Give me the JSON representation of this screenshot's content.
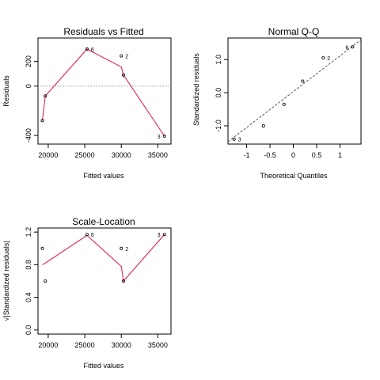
{
  "chart_data": [
    {
      "type": "scatter",
      "title": "Residuals vs Fitted",
      "xlabel": "Fitted values",
      "ylabel": "Residuals",
      "xlim": [
        18600,
        36800
      ],
      "ylim": [
        -470,
        390
      ],
      "xticks": [
        20000,
        25000,
        30000,
        35000
      ],
      "yticks": [
        -400,
        0,
        200
      ],
      "points": [
        {
          "x": 19200,
          "y": -280,
          "label": ""
        },
        {
          "x": 19600,
          "y": -80,
          "label": ""
        },
        {
          "x": 25300,
          "y": 300,
          "label": "6"
        },
        {
          "x": 30000,
          "y": 245,
          "label": "2"
        },
        {
          "x": 30300,
          "y": 90,
          "label": ""
        },
        {
          "x": 35900,
          "y": -405,
          "label": "3"
        }
      ],
      "smooth": [
        [
          19200,
          -280
        ],
        [
          19600,
          -80
        ],
        [
          25300,
          300
        ],
        [
          30000,
          155
        ],
        [
          30300,
          90
        ],
        [
          35900,
          -405
        ]
      ],
      "refline": {
        "type": "h",
        "value": 0
      }
    },
    {
      "type": "scatter",
      "title": "Normal Q-Q",
      "xlabel": "Theoretical Quantiles",
      "ylabel": "Standardized residuals",
      "xlim": [
        -1.4,
        1.45
      ],
      "ylim": [
        -1.55,
        1.65
      ],
      "xticks": [
        -1.0,
        -0.5,
        0.0,
        0.5,
        1.0
      ],
      "ytick_labels": [
        "-1.0",
        "0.0",
        "1.0"
      ],
      "yticks": [
        -1.0,
        0.0,
        1.0
      ],
      "points": [
        {
          "x": -1.27,
          "y": -1.4,
          "label": "3"
        },
        {
          "x": -0.64,
          "y": -1.0,
          "label": ""
        },
        {
          "x": -0.2,
          "y": -0.35,
          "label": ""
        },
        {
          "x": 0.2,
          "y": 0.35,
          "label": ""
        },
        {
          "x": 0.64,
          "y": 1.05,
          "label": "2"
        },
        {
          "x": 1.27,
          "y": 1.38,
          "label": "6"
        }
      ],
      "refline": {
        "type": "ab",
        "from": [
          -1.4,
          -1.48
        ],
        "to": [
          1.45,
          1.6
        ]
      }
    },
    {
      "type": "scatter",
      "title": "Scale-Location",
      "xlabel": "Fitted values",
      "ylabel": "√|Standardized residuals|",
      "xlim": [
        18600,
        36800
      ],
      "ylim": [
        -0.05,
        1.25
      ],
      "xticks": [
        20000,
        25000,
        30000,
        35000
      ],
      "yticks": [
        0.0,
        0.4,
        0.8,
        1.2
      ],
      "ytick_labels": [
        "0.0",
        "0.4",
        "0.8",
        "1.2"
      ],
      "points": [
        {
          "x": 19200,
          "y": 1.0,
          "label": ""
        },
        {
          "x": 19600,
          "y": 0.6,
          "label": ""
        },
        {
          "x": 25300,
          "y": 1.17,
          "label": "6"
        },
        {
          "x": 30000,
          "y": 1.0,
          "label": "2"
        },
        {
          "x": 30300,
          "y": 0.6,
          "label": ""
        },
        {
          "x": 35900,
          "y": 1.17,
          "label": "3"
        }
      ],
      "smooth": [
        [
          19200,
          0.8
        ],
        [
          19600,
          0.82
        ],
        [
          25300,
          1.16
        ],
        [
          30000,
          0.78
        ],
        [
          30300,
          0.6
        ],
        [
          35900,
          1.17
        ]
      ]
    }
  ]
}
